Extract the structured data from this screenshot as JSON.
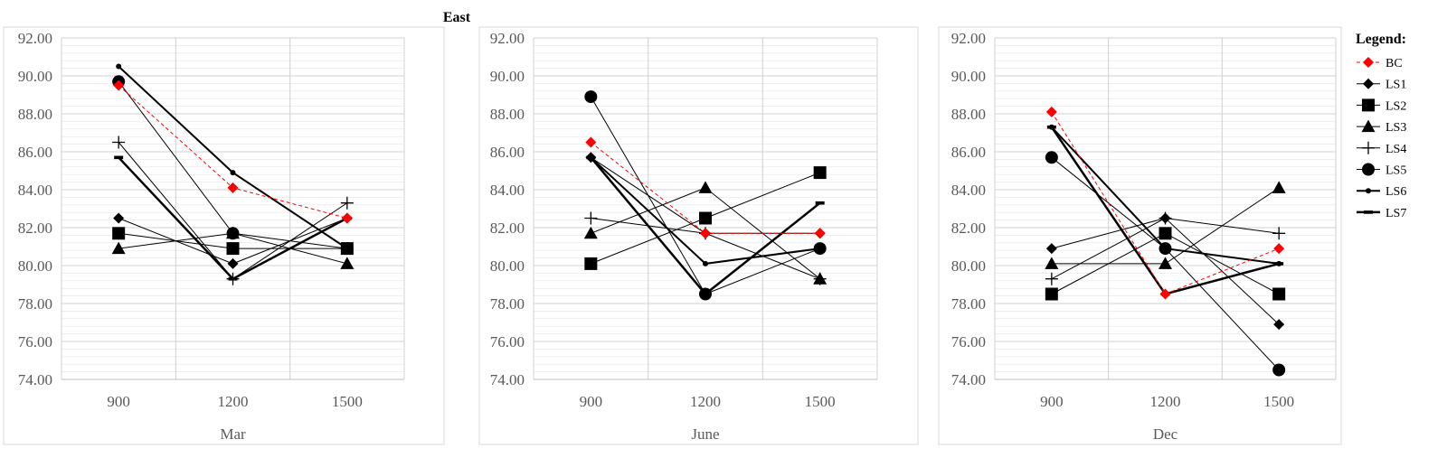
{
  "figure_title": "East",
  "legend_title": "Legend:",
  "styles": {
    "BC": {
      "color": "#ff0000",
      "marker": "diamond",
      "dash": true,
      "width": 1
    },
    "LS1": {
      "color": "#000000",
      "marker": "diamond",
      "dash": false,
      "width": 1
    },
    "LS2": {
      "color": "#000000",
      "marker": "square",
      "dash": false,
      "width": 1
    },
    "LS3": {
      "color": "#000000",
      "marker": "triangle",
      "dash": false,
      "width": 1
    },
    "LS4": {
      "color": "#000000",
      "marker": "plus",
      "dash": false,
      "width": 1
    },
    "LS5": {
      "color": "#000000",
      "marker": "circle",
      "dash": false,
      "width": 1
    },
    "LS6": {
      "color": "#000000",
      "marker": "dot",
      "dash": false,
      "width": 2
    },
    "LS7": {
      "color": "#000000",
      "marker": "dash",
      "dash": false,
      "width": 2.5
    }
  },
  "chart_data": [
    {
      "type": "line",
      "xlabel": "Mar",
      "categories": [
        "900",
        "1200",
        "1500"
      ],
      "ylim": [
        74,
        92
      ],
      "yticks": [
        "74.00",
        "76.00",
        "78.00",
        "80.00",
        "82.00",
        "84.00",
        "86.00",
        "88.00",
        "90.00",
        "92.00"
      ],
      "series": [
        {
          "name": "BC",
          "values": [
            89.5,
            84.1,
            82.5
          ]
        },
        {
          "name": "LS1",
          "values": [
            82.5,
            80.1,
            82.5
          ]
        },
        {
          "name": "LS2",
          "values": [
            81.7,
            80.9,
            80.9
          ]
        },
        {
          "name": "LS3",
          "values": [
            80.9,
            81.7,
            80.1
          ]
        },
        {
          "name": "LS4",
          "values": [
            86.5,
            79.3,
            83.3
          ]
        },
        {
          "name": "LS5",
          "values": [
            89.7,
            81.7,
            80.9
          ]
        },
        {
          "name": "LS6",
          "values": [
            90.5,
            84.9,
            80.9
          ]
        },
        {
          "name": "LS7",
          "values": [
            85.7,
            79.3,
            82.5
          ]
        }
      ]
    },
    {
      "type": "line",
      "xlabel": "June",
      "categories": [
        "900",
        "1200",
        "1500"
      ],
      "ylim": [
        74,
        92
      ],
      "yticks": [
        "74.00",
        "76.00",
        "78.00",
        "80.00",
        "82.00",
        "84.00",
        "86.00",
        "88.00",
        "90.00",
        "92.00"
      ],
      "series": [
        {
          "name": "BC",
          "values": [
            86.5,
            81.7,
            81.7
          ]
        },
        {
          "name": "LS1",
          "values": [
            85.7,
            81.7,
            81.7
          ]
        },
        {
          "name": "LS2",
          "values": [
            80.1,
            82.5,
            84.9
          ]
        },
        {
          "name": "LS3",
          "values": [
            81.7,
            84.1,
            79.3
          ]
        },
        {
          "name": "LS4",
          "values": [
            82.5,
            81.7,
            79.3
          ]
        },
        {
          "name": "LS5",
          "values": [
            88.9,
            78.5,
            80.9
          ]
        },
        {
          "name": "LS6",
          "values": [
            85.7,
            80.1,
            80.9
          ]
        },
        {
          "name": "LS7",
          "values": [
            85.7,
            78.5,
            83.3
          ]
        }
      ]
    },
    {
      "type": "line",
      "xlabel": "Dec",
      "categories": [
        "900",
        "1200",
        "1500"
      ],
      "ylim": [
        74,
        92
      ],
      "yticks": [
        "74.00",
        "76.00",
        "78.00",
        "80.00",
        "82.00",
        "84.00",
        "86.00",
        "88.00",
        "90.00",
        "92.00"
      ],
      "series": [
        {
          "name": "BC",
          "values": [
            88.1,
            78.5,
            80.9
          ]
        },
        {
          "name": "LS1",
          "values": [
            80.9,
            82.5,
            76.9
          ]
        },
        {
          "name": "LS2",
          "values": [
            78.5,
            81.7,
            78.5
          ]
        },
        {
          "name": "LS3",
          "values": [
            80.1,
            80.1,
            84.1
          ]
        },
        {
          "name": "LS4",
          "values": [
            79.3,
            82.5,
            81.7
          ]
        },
        {
          "name": "LS5",
          "values": [
            85.7,
            80.9,
            74.5
          ]
        },
        {
          "name": "LS6",
          "values": [
            87.3,
            80.9,
            80.1
          ]
        },
        {
          "name": "LS7",
          "values": [
            87.3,
            78.5,
            80.1
          ]
        }
      ]
    }
  ]
}
